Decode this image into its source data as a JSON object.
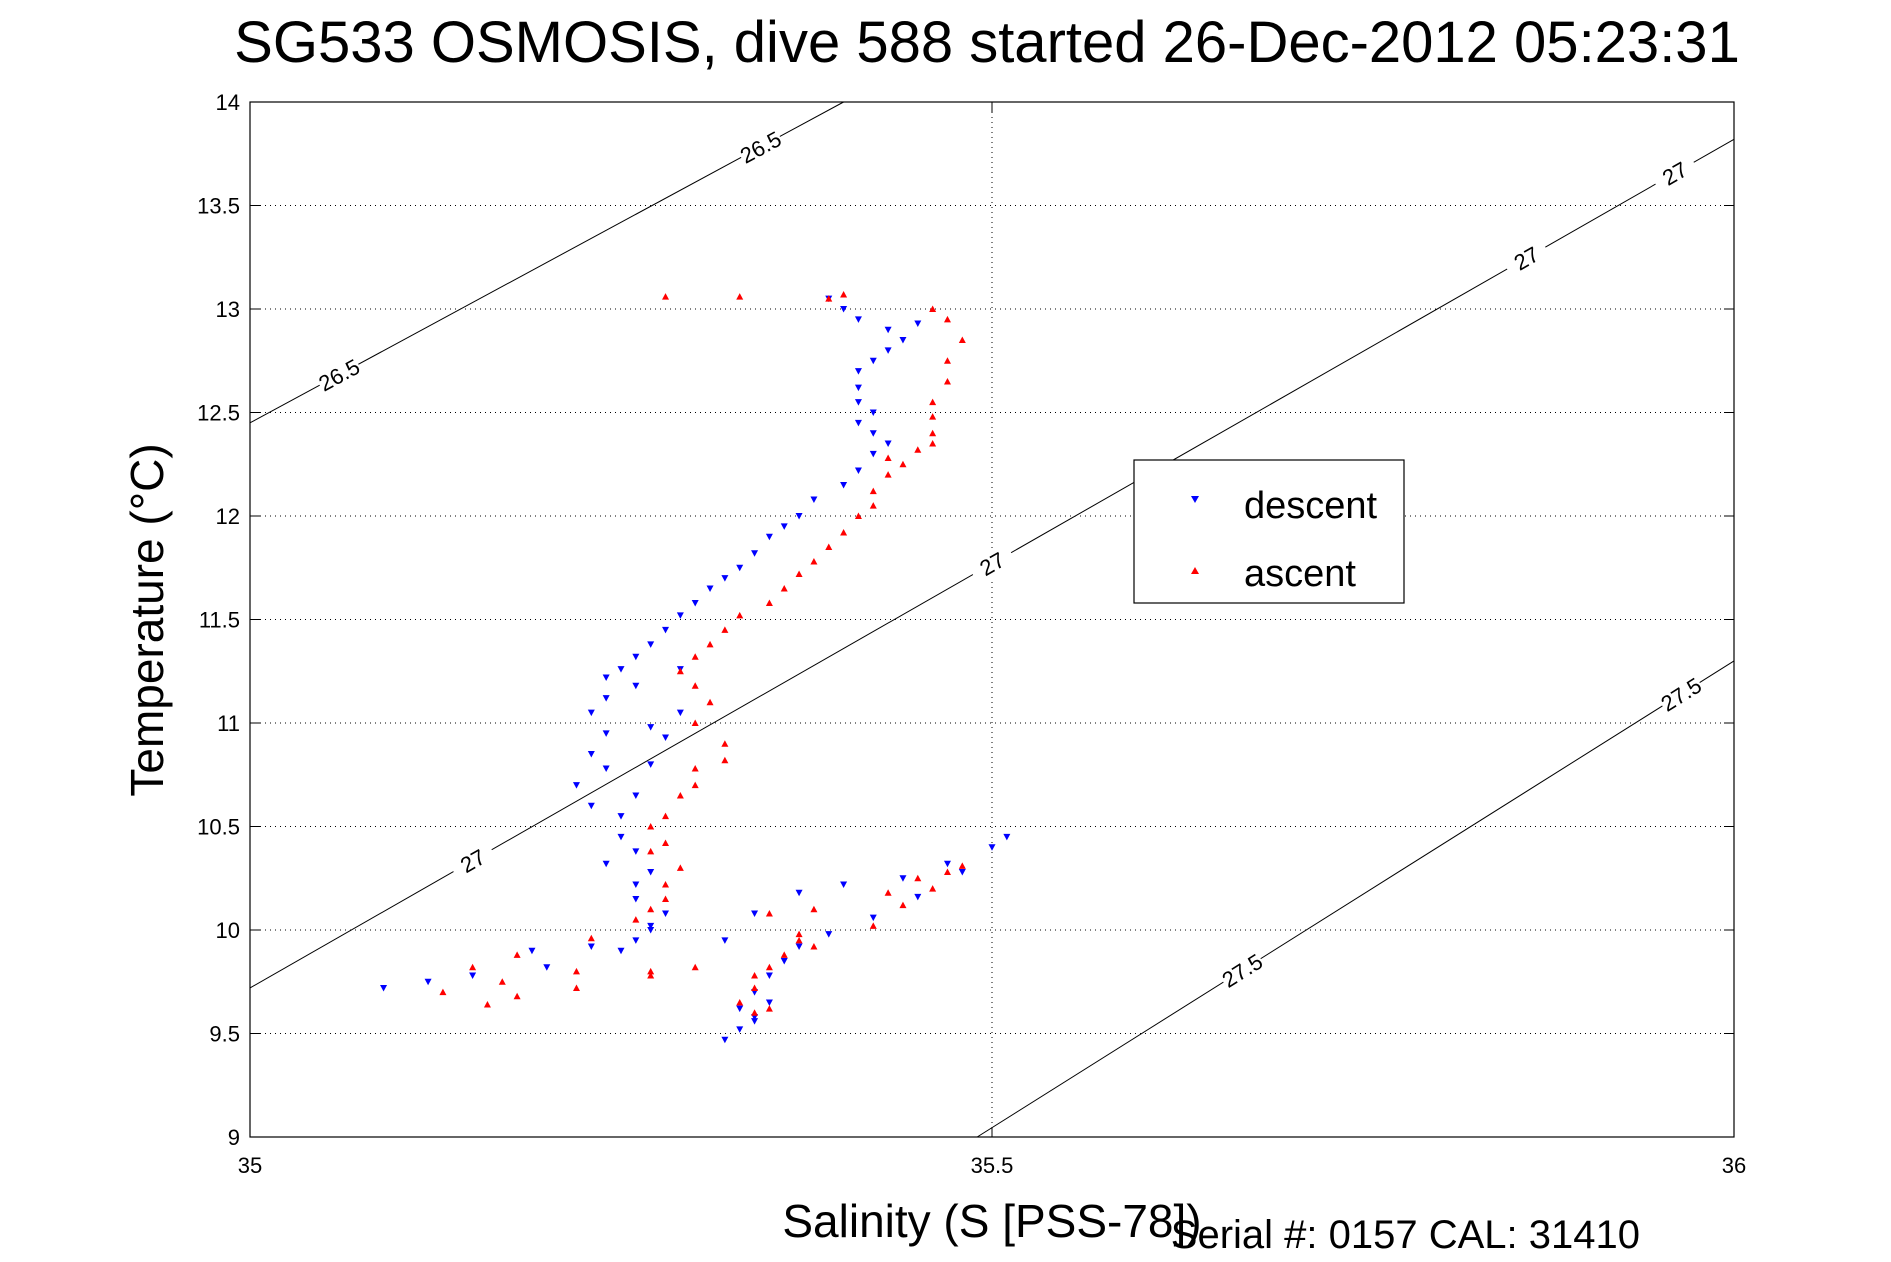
{
  "chart_data": {
    "type": "scatter",
    "title": "SG533 OSMOSIS, dive 588 started 26-Dec-2012 05:23:31",
    "xlabel": "Salinity (S [PSS-78])",
    "ylabel": "Temperature (°C)",
    "xlim": [
      35,
      36
    ],
    "ylim": [
      9,
      14
    ],
    "xticks": [
      "35",
      "35.5",
      "36"
    ],
    "yticks": [
      "9",
      "9.5",
      "10",
      "10.5",
      "11",
      "11.5",
      "12",
      "12.5",
      "13",
      "13.5",
      "14"
    ],
    "grid": true,
    "legend_position": "right-center",
    "footnote": "Serial #: 0157  CAL: 31410",
    "density_contours": [
      {
        "label": "26.5",
        "points": [
          [
            35.0,
            12.45
          ],
          [
            35.4,
            14.0
          ]
        ]
      },
      {
        "label": "27",
        "points": [
          [
            35.0,
            9.72
          ],
          [
            36.0,
            13.82
          ]
        ]
      },
      {
        "label": "27.5",
        "points": [
          [
            35.49,
            9.0
          ],
          [
            36.0,
            11.3
          ]
        ]
      }
    ],
    "series": [
      {
        "name": "descent",
        "color": "#0000ff",
        "marker": "triangle-down",
        "points": [
          [
            35.39,
            13.05
          ],
          [
            35.4,
            13.0
          ],
          [
            35.41,
            12.95
          ],
          [
            35.43,
            12.9
          ],
          [
            35.45,
            12.93
          ],
          [
            35.44,
            12.85
          ],
          [
            35.43,
            12.8
          ],
          [
            35.42,
            12.75
          ],
          [
            35.41,
            12.7
          ],
          [
            35.41,
            12.62
          ],
          [
            35.41,
            12.55
          ],
          [
            35.42,
            12.5
          ],
          [
            35.41,
            12.45
          ],
          [
            35.42,
            12.4
          ],
          [
            35.43,
            12.35
          ],
          [
            35.42,
            12.3
          ],
          [
            35.41,
            12.22
          ],
          [
            35.4,
            12.15
          ],
          [
            35.38,
            12.08
          ],
          [
            35.37,
            12.0
          ],
          [
            35.36,
            11.95
          ],
          [
            35.35,
            11.9
          ],
          [
            35.34,
            11.82
          ],
          [
            35.33,
            11.75
          ],
          [
            35.32,
            11.7
          ],
          [
            35.31,
            11.65
          ],
          [
            35.3,
            11.58
          ],
          [
            35.29,
            11.52
          ],
          [
            35.28,
            11.45
          ],
          [
            35.27,
            11.38
          ],
          [
            35.26,
            11.32
          ],
          [
            35.25,
            11.26
          ],
          [
            35.24,
            11.22
          ],
          [
            35.29,
            11.26
          ],
          [
            35.26,
            11.18
          ],
          [
            35.24,
            11.12
          ],
          [
            35.23,
            11.05
          ],
          [
            35.29,
            11.05
          ],
          [
            35.27,
            10.98
          ],
          [
            35.28,
            10.93
          ],
          [
            35.24,
            10.95
          ],
          [
            35.23,
            10.85
          ],
          [
            35.24,
            10.78
          ],
          [
            35.27,
            10.8
          ],
          [
            35.22,
            10.7
          ],
          [
            35.26,
            10.65
          ],
          [
            35.23,
            10.6
          ],
          [
            35.25,
            10.55
          ],
          [
            35.25,
            10.45
          ],
          [
            35.26,
            10.38
          ],
          [
            35.24,
            10.32
          ],
          [
            35.27,
            10.28
          ],
          [
            35.26,
            10.22
          ],
          [
            35.26,
            10.15
          ],
          [
            35.28,
            10.08
          ],
          [
            35.27,
            10.02
          ],
          [
            35.26,
            9.95
          ],
          [
            35.25,
            9.9
          ],
          [
            35.2,
            9.82
          ],
          [
            35.15,
            9.78
          ],
          [
            35.12,
            9.75
          ],
          [
            35.09,
            9.72
          ],
          [
            35.19,
            9.9
          ],
          [
            35.23,
            9.92
          ],
          [
            35.27,
            10.0
          ],
          [
            35.32,
            9.95
          ],
          [
            35.34,
            10.08
          ],
          [
            35.37,
            10.18
          ],
          [
            35.4,
            10.22
          ],
          [
            35.44,
            10.25
          ],
          [
            35.47,
            10.32
          ],
          [
            35.5,
            10.4
          ],
          [
            35.51,
            10.45
          ],
          [
            35.48,
            10.28
          ],
          [
            35.45,
            10.16
          ],
          [
            35.42,
            10.06
          ],
          [
            35.39,
            9.98
          ],
          [
            35.37,
            9.92
          ],
          [
            35.36,
            9.85
          ],
          [
            35.35,
            9.78
          ],
          [
            35.34,
            9.7
          ],
          [
            35.35,
            9.65
          ],
          [
            35.33,
            9.62
          ],
          [
            35.34,
            9.56
          ],
          [
            35.33,
            9.52
          ],
          [
            35.32,
            9.47
          ],
          [
            35.34,
            9.58
          ]
        ]
      },
      {
        "name": "ascent",
        "color": "#ff0000",
        "marker": "triangle-up",
        "points": [
          [
            35.28,
            13.06
          ],
          [
            35.33,
            13.06
          ],
          [
            35.4,
            13.07
          ],
          [
            35.39,
            13.05
          ],
          [
            35.46,
            13.0
          ],
          [
            35.47,
            12.95
          ],
          [
            35.48,
            12.85
          ],
          [
            35.47,
            12.75
          ],
          [
            35.47,
            12.65
          ],
          [
            35.46,
            12.55
          ],
          [
            35.46,
            12.48
          ],
          [
            35.46,
            12.4
          ],
          [
            35.46,
            12.35
          ],
          [
            35.45,
            12.32
          ],
          [
            35.43,
            12.28
          ],
          [
            35.44,
            12.25
          ],
          [
            35.43,
            12.2
          ],
          [
            35.42,
            12.12
          ],
          [
            35.42,
            12.05
          ],
          [
            35.41,
            12.0
          ],
          [
            35.4,
            11.92
          ],
          [
            35.39,
            11.85
          ],
          [
            35.38,
            11.78
          ],
          [
            35.37,
            11.72
          ],
          [
            35.36,
            11.65
          ],
          [
            35.35,
            11.58
          ],
          [
            35.33,
            11.52
          ],
          [
            35.32,
            11.45
          ],
          [
            35.31,
            11.38
          ],
          [
            35.3,
            11.32
          ],
          [
            35.29,
            11.25
          ],
          [
            35.3,
            11.18
          ],
          [
            35.31,
            11.1
          ],
          [
            35.3,
            11.0
          ],
          [
            35.32,
            10.9
          ],
          [
            35.32,
            10.82
          ],
          [
            35.3,
            10.78
          ],
          [
            35.3,
            10.7
          ],
          [
            35.29,
            10.65
          ],
          [
            35.28,
            10.55
          ],
          [
            35.27,
            10.5
          ],
          [
            35.28,
            10.42
          ],
          [
            35.27,
            10.38
          ],
          [
            35.29,
            10.3
          ],
          [
            35.28,
            10.22
          ],
          [
            35.28,
            10.15
          ],
          [
            35.27,
            10.1
          ],
          [
            35.26,
            10.05
          ],
          [
            35.23,
            9.96
          ],
          [
            35.18,
            9.88
          ],
          [
            35.15,
            9.82
          ],
          [
            35.22,
            9.8
          ],
          [
            35.27,
            9.78
          ],
          [
            35.3,
            9.82
          ],
          [
            35.22,
            9.72
          ],
          [
            35.18,
            9.68
          ],
          [
            35.16,
            9.64
          ],
          [
            35.13,
            9.7
          ],
          [
            35.17,
            9.75
          ],
          [
            35.27,
            9.8
          ],
          [
            35.35,
            10.08
          ],
          [
            35.37,
            9.98
          ],
          [
            35.38,
            9.92
          ],
          [
            35.36,
            9.88
          ],
          [
            35.35,
            9.82
          ],
          [
            35.34,
            9.78
          ],
          [
            35.34,
            9.72
          ],
          [
            35.33,
            9.65
          ],
          [
            35.34,
            9.6
          ],
          [
            35.35,
            9.62
          ],
          [
            35.42,
            10.02
          ],
          [
            35.44,
            10.12
          ],
          [
            35.46,
            10.2
          ],
          [
            35.47,
            10.28
          ],
          [
            35.48,
            10.31
          ],
          [
            35.45,
            10.25
          ],
          [
            35.43,
            10.18
          ],
          [
            35.38,
            10.1
          ],
          [
            35.37,
            9.95
          ]
        ]
      }
    ]
  }
}
